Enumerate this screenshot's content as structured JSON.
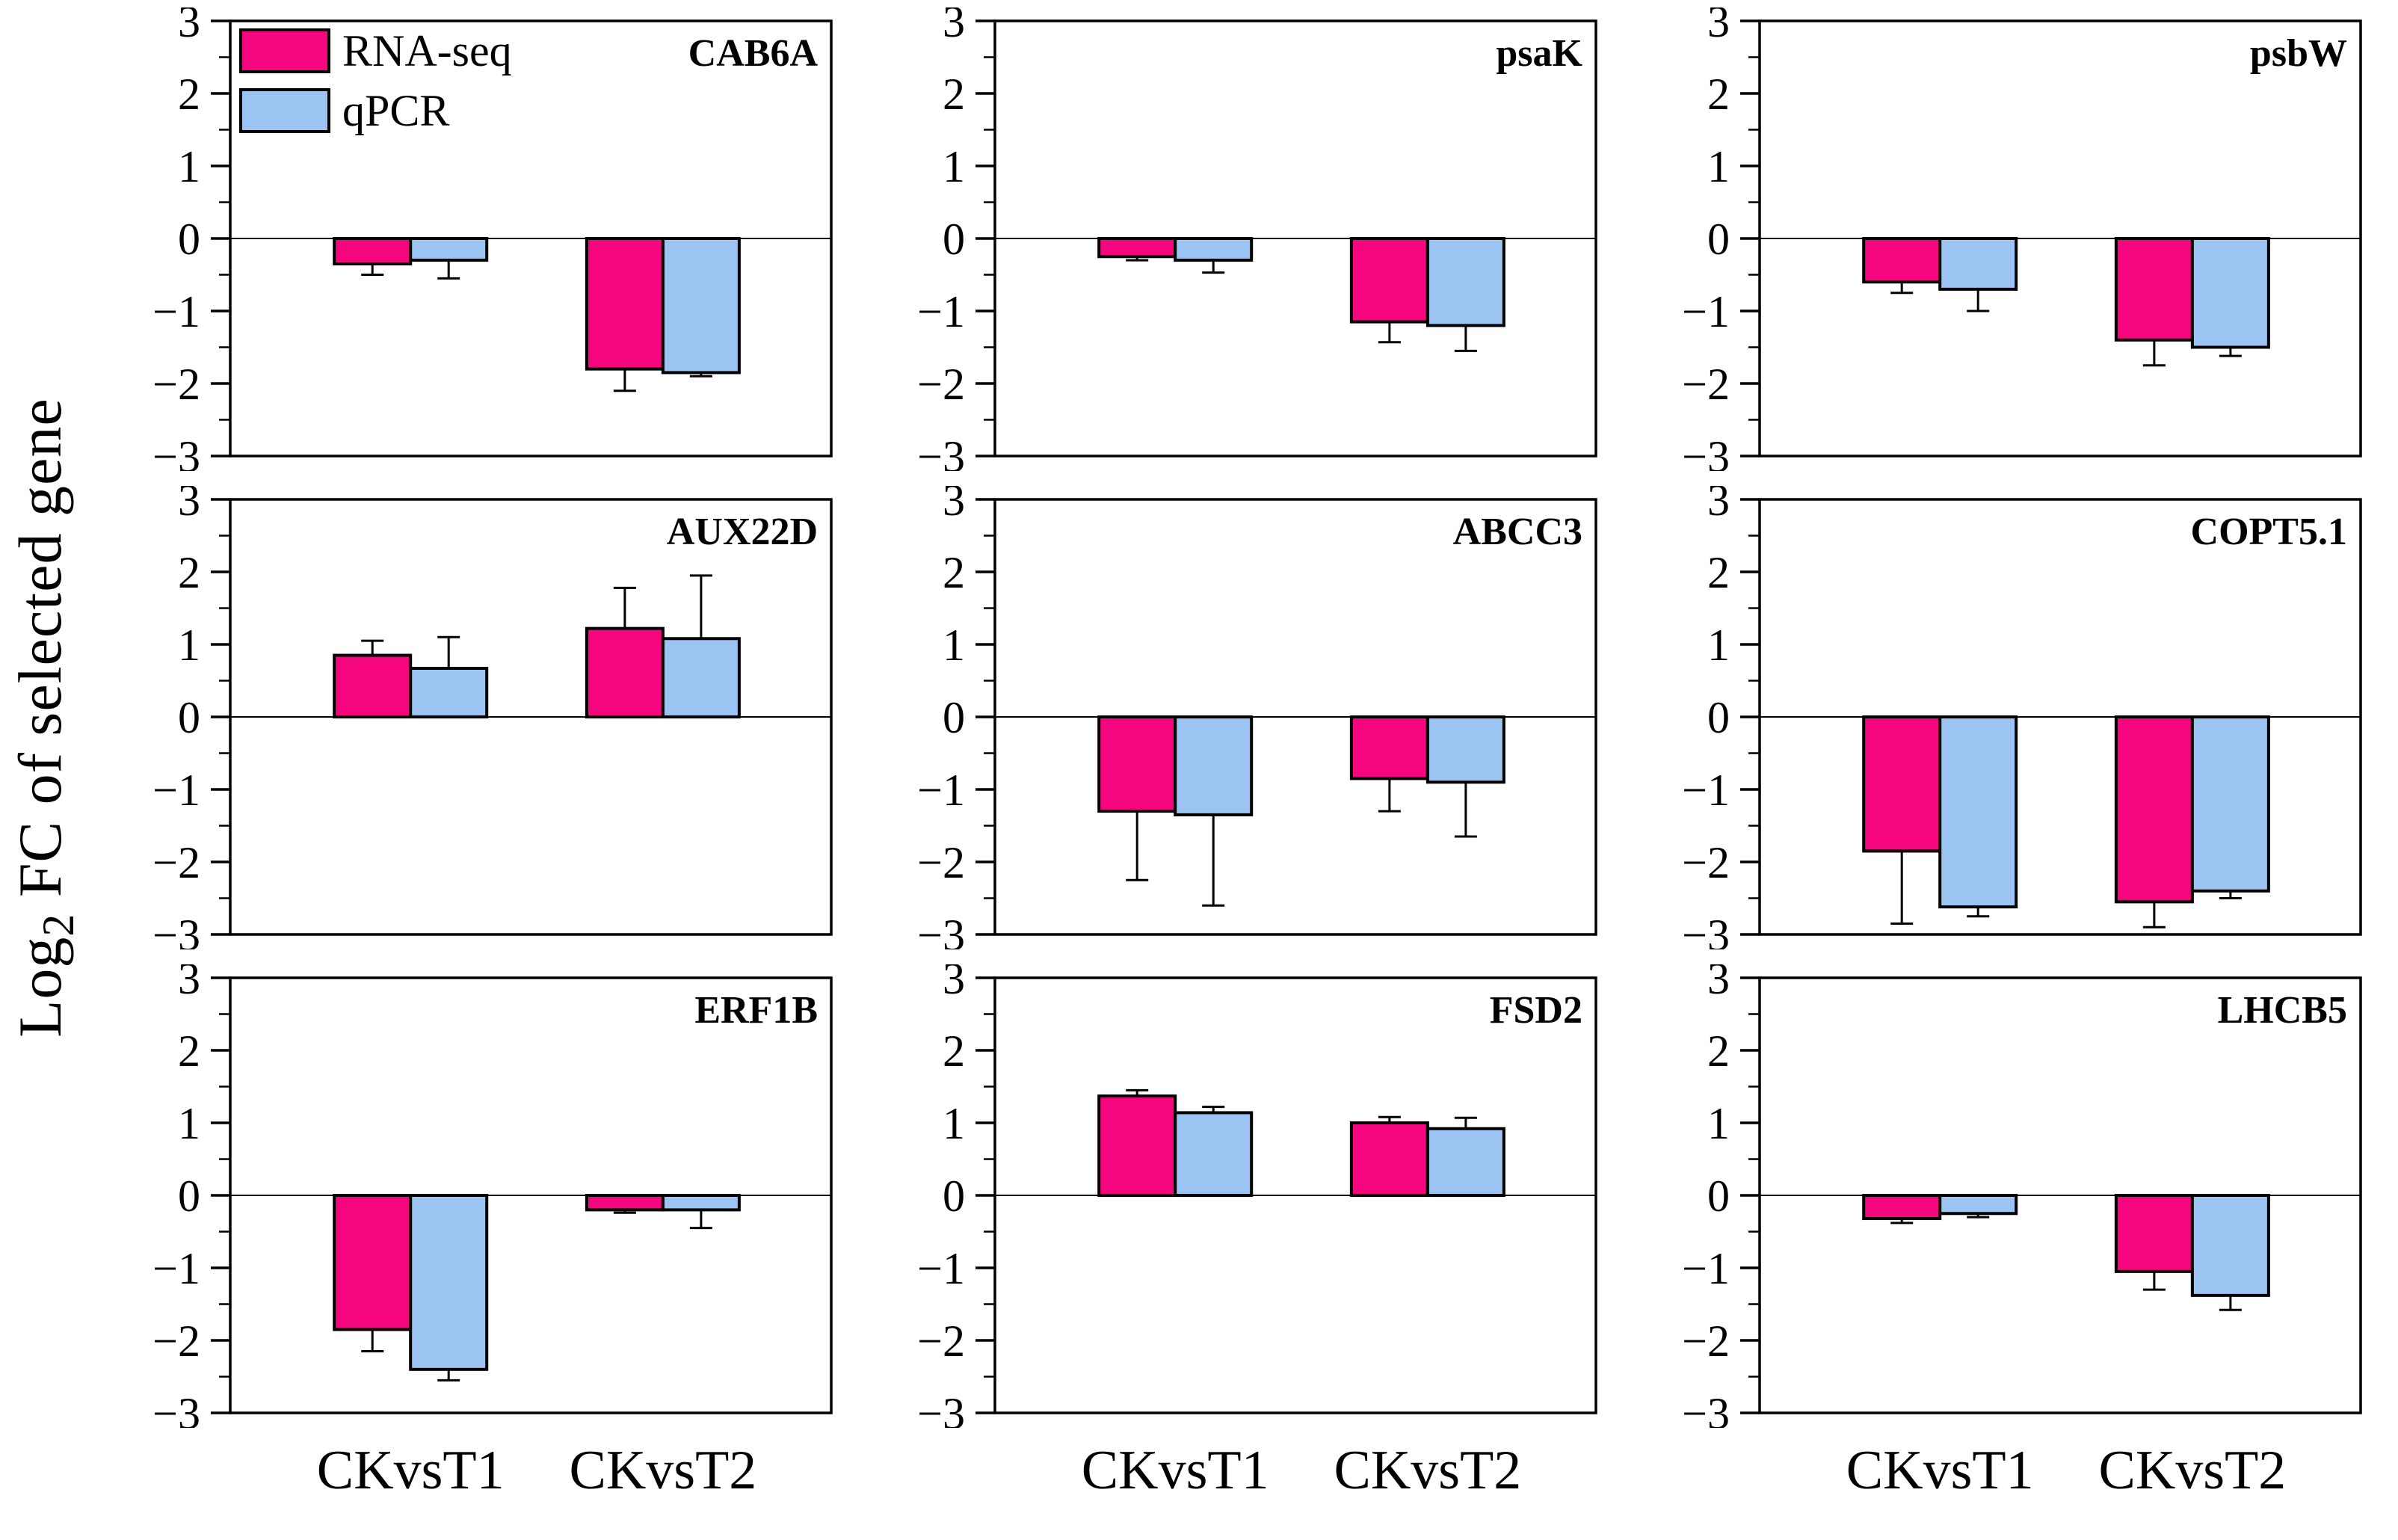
{
  "y_axis": {
    "title_prefix": "Log",
    "title_sub": "2",
    "title_suffix": " FC of selected gene",
    "min": -3,
    "max": 3,
    "major_tick_step": 1,
    "minor_tick_step": 0.5,
    "tick_labels": [
      "3",
      "2",
      "1",
      "0",
      "−1",
      "−2",
      "−3"
    ]
  },
  "legend": {
    "items": [
      {
        "label": "RNA-seq",
        "color": "#F5067F"
      },
      {
        "label": "qPCR",
        "color": "#9BC4F2"
      }
    ]
  },
  "colors": {
    "rna_seq": "#F5067F",
    "qpcr": "#9BC4F2",
    "bar_outline": "#000000",
    "axis": "#000000",
    "background": "#ffffff"
  },
  "chart_data": {
    "type": "bar",
    "categories": [
      "CKvsT1",
      "CKvsT2"
    ],
    "ylim": [
      -3,
      3
    ],
    "ylabel": "Log2 FC of selected gene",
    "grid": false,
    "legend_position": "top-left-first-panel",
    "error_bars": "one-sided-outward",
    "series_names": [
      "RNA-seq",
      "qPCR"
    ],
    "panels": [
      {
        "gene": "CAB6A",
        "legend": true,
        "series": [
          {
            "name": "RNA-seq",
            "values": [
              -0.35,
              -1.8
            ],
            "errors": [
              0.15,
              0.3
            ]
          },
          {
            "name": "qPCR",
            "values": [
              -0.3,
              -1.85
            ],
            "errors": [
              0.25,
              0.05
            ]
          }
        ]
      },
      {
        "gene": "psaK",
        "series": [
          {
            "name": "RNA-seq",
            "values": [
              -0.25,
              -1.15
            ],
            "errors": [
              0.05,
              0.28
            ]
          },
          {
            "name": "qPCR",
            "values": [
              -0.3,
              -1.2
            ],
            "errors": [
              0.17,
              0.35
            ]
          }
        ]
      },
      {
        "gene": "psbW",
        "series": [
          {
            "name": "RNA-seq",
            "values": [
              -0.6,
              -1.4
            ],
            "errors": [
              0.15,
              0.35
            ]
          },
          {
            "name": "qPCR",
            "values": [
              -0.7,
              -1.5
            ],
            "errors": [
              0.3,
              0.12
            ]
          }
        ]
      },
      {
        "gene": "AUX22D",
        "series": [
          {
            "name": "RNA-seq",
            "values": [
              0.85,
              1.22
            ],
            "errors": [
              0.2,
              0.56
            ]
          },
          {
            "name": "qPCR",
            "values": [
              0.67,
              1.08
            ],
            "errors": [
              0.43,
              0.87
            ]
          }
        ]
      },
      {
        "gene": "ABCC3",
        "series": [
          {
            "name": "RNA-seq",
            "values": [
              -1.3,
              -0.85
            ],
            "errors": [
              0.95,
              0.45
            ]
          },
          {
            "name": "qPCR",
            "values": [
              -1.35,
              -0.9
            ],
            "errors": [
              1.25,
              0.75
            ]
          }
        ]
      },
      {
        "gene": "COPT5.1",
        "series": [
          {
            "name": "RNA-seq",
            "values": [
              -1.85,
              -2.55
            ],
            "errors": [
              1.0,
              0.35
            ]
          },
          {
            "name": "qPCR",
            "values": [
              -2.62,
              -2.4
            ],
            "errors": [
              0.13,
              0.1
            ]
          }
        ]
      },
      {
        "gene": "ERF1B",
        "series": [
          {
            "name": "RNA-seq",
            "values": [
              -1.85,
              -0.2
            ],
            "errors": [
              0.3,
              0.04
            ]
          },
          {
            "name": "qPCR",
            "values": [
              -2.4,
              -0.2
            ],
            "errors": [
              0.15,
              0.25
            ]
          }
        ]
      },
      {
        "gene": "FSD2",
        "series": [
          {
            "name": "RNA-seq",
            "values": [
              1.37,
              1.0
            ],
            "errors": [
              0.08,
              0.08
            ]
          },
          {
            "name": "qPCR",
            "values": [
              1.14,
              0.92
            ],
            "errors": [
              0.08,
              0.15
            ]
          }
        ]
      },
      {
        "gene": "LHCB5",
        "series": [
          {
            "name": "RNA-seq",
            "values": [
              -0.32,
              -1.05
            ],
            "errors": [
              0.06,
              0.25
            ]
          },
          {
            "name": "qPCR",
            "values": [
              -0.25,
              -1.38
            ],
            "errors": [
              0.05,
              0.2
            ]
          }
        ]
      }
    ]
  }
}
